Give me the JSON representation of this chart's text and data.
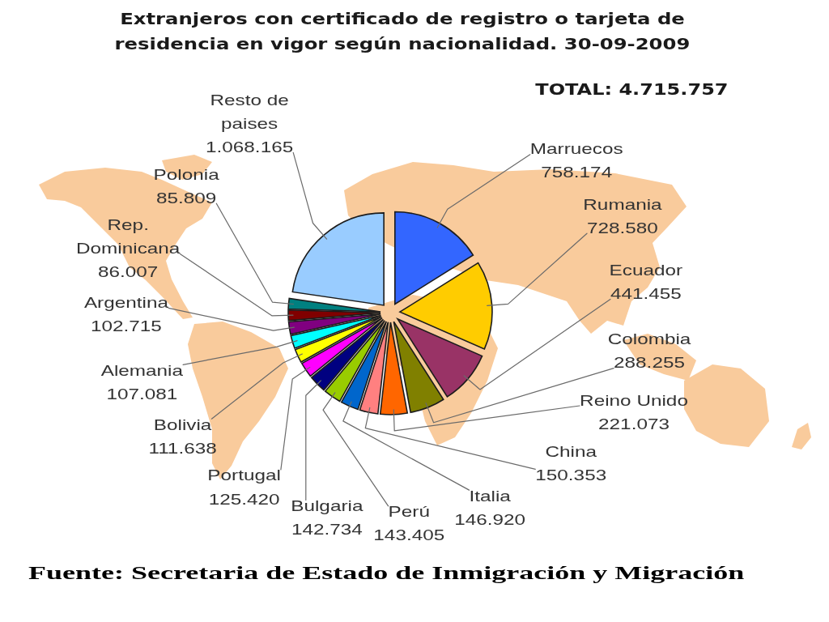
{
  "chart_data": {
    "type": "pie",
    "title": "Extranjeros con certificado de registro o tarjeta de residencia en vigor según nacionalidad. 30-09-2009",
    "categories": [
      "Marruecos",
      "Rumania",
      "Ecuador",
      "Colombia",
      "Reino Unido",
      "China",
      "Italia",
      "Perú",
      "Bulgaria",
      "Portugal",
      "Bolivia",
      "Alemania",
      "Argentina",
      "Rep. Dominicana",
      "Polonia",
      "Resto de paises"
    ],
    "values": [
      758174,
      728580,
      441455,
      288255,
      221073,
      150353,
      146920,
      143405,
      142734,
      125420,
      111638,
      107081,
      102715,
      86007,
      85809,
      1068165
    ],
    "value_labels": [
      "758.174",
      "728.580",
      "441.455",
      "288.255",
      "221.073",
      "150.353",
      "146.920",
      "143.405",
      "142.734",
      "125.420",
      "111.638",
      "107.081",
      "102.715",
      "86.007",
      "85.809",
      "1.068.165"
    ],
    "colors": [
      "#3366ff",
      "#ffcc00",
      "#993366",
      "#808000",
      "#ff6600",
      "#ff8080",
      "#0066cc",
      "#99cc00",
      "#000080",
      "#ff00ff",
      "#ffff00",
      "#00ffff",
      "#800080",
      "#800000",
      "#008080",
      "#99ccff"
    ],
    "annotations": [
      "TOTAL: 4.715.757",
      "Fuente: Secretaria de Estado de Inmigración y Migración"
    ]
  }
}
